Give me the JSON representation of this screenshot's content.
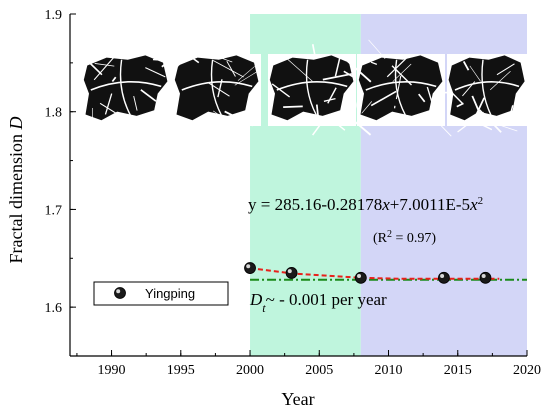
{
  "chart_data": {
    "type": "scatter",
    "xlabel": "Year",
    "ylabel_main": "Fractal dimension ",
    "ylabel_var": "D",
    "xlim": [
      1987,
      2020
    ],
    "ylim": [
      1.55,
      1.9
    ],
    "xticks": [
      1990,
      1995,
      2000,
      2005,
      2010,
      2015,
      2020
    ],
    "yticks": [
      1.6,
      1.7,
      1.8,
      1.9
    ],
    "shaded_regions": [
      {
        "x0": 2000,
        "x1": 2008,
        "color": "#bff5dd"
      },
      {
        "x0": 2008,
        "x1": 2020,
        "color": "#d3d6f7"
      }
    ],
    "series": [
      {
        "name": "Yingping",
        "x": [
          2000,
          2003,
          2008,
          2014,
          2017
        ],
        "y": [
          1.64,
          1.635,
          1.63,
          1.63,
          1.63
        ]
      }
    ],
    "fit": {
      "equation_prefix": "y = 285.16-0.28178",
      "equation_x1": "x",
      "equation_mid": "+7.0011E-5",
      "equation_x2": "x",
      "equation_exp": "2",
      "r2": "(R",
      "r2_exp": "2",
      "r2_rest": " = 0.97)",
      "x": [
        2000,
        2003,
        2008,
        2011,
        2014,
        2017,
        2018
      ],
      "y": [
        1.64,
        1.6345,
        1.63,
        1.629,
        1.629,
        1.629,
        1.629
      ],
      "color": "#e8211b"
    },
    "trend": {
      "label_var": "D",
      "label_sub": "t",
      "label_rest": "~ - 0.001 per year",
      "x0": 2000,
      "y0": 1.628,
      "x1": 2020,
      "y1": 1.628,
      "color": "#1a8a1a"
    },
    "legend": {
      "label": "Yingping",
      "placement": "lower-left"
    }
  }
}
